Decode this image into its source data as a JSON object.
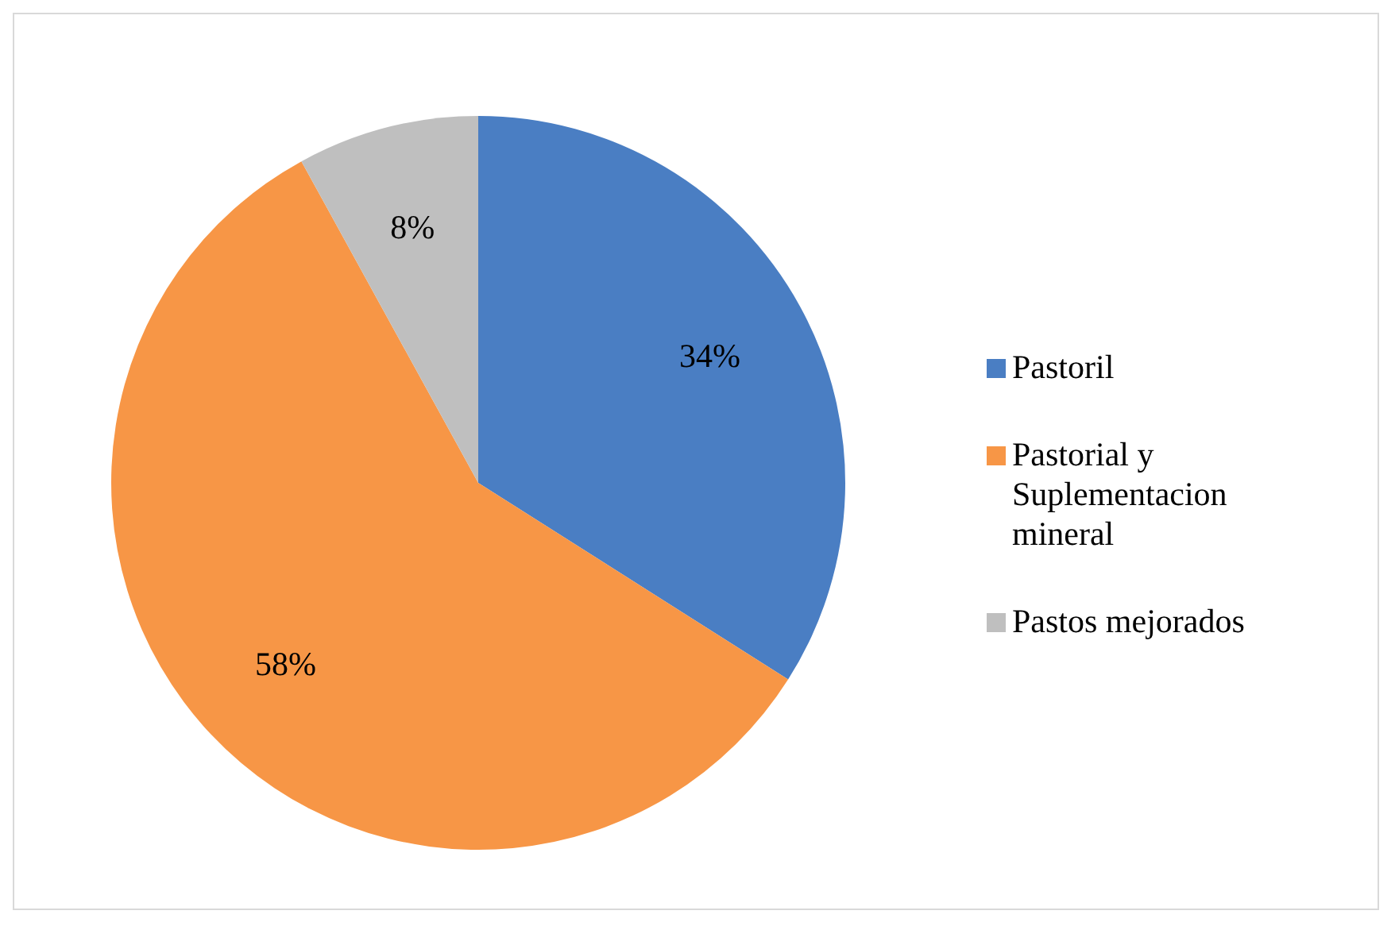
{
  "chart_data": {
    "type": "pie",
    "categories": [
      "Pastoril",
      "Pastorial y Suplementacion mineral",
      "Pastos mejorados"
    ],
    "values": [
      34,
      58,
      8
    ],
    "value_labels": [
      "34%",
      "58%",
      "8%"
    ],
    "colors": [
      "#4a7ec3",
      "#f79646",
      "#bfbfbf"
    ],
    "legend": "right"
  }
}
